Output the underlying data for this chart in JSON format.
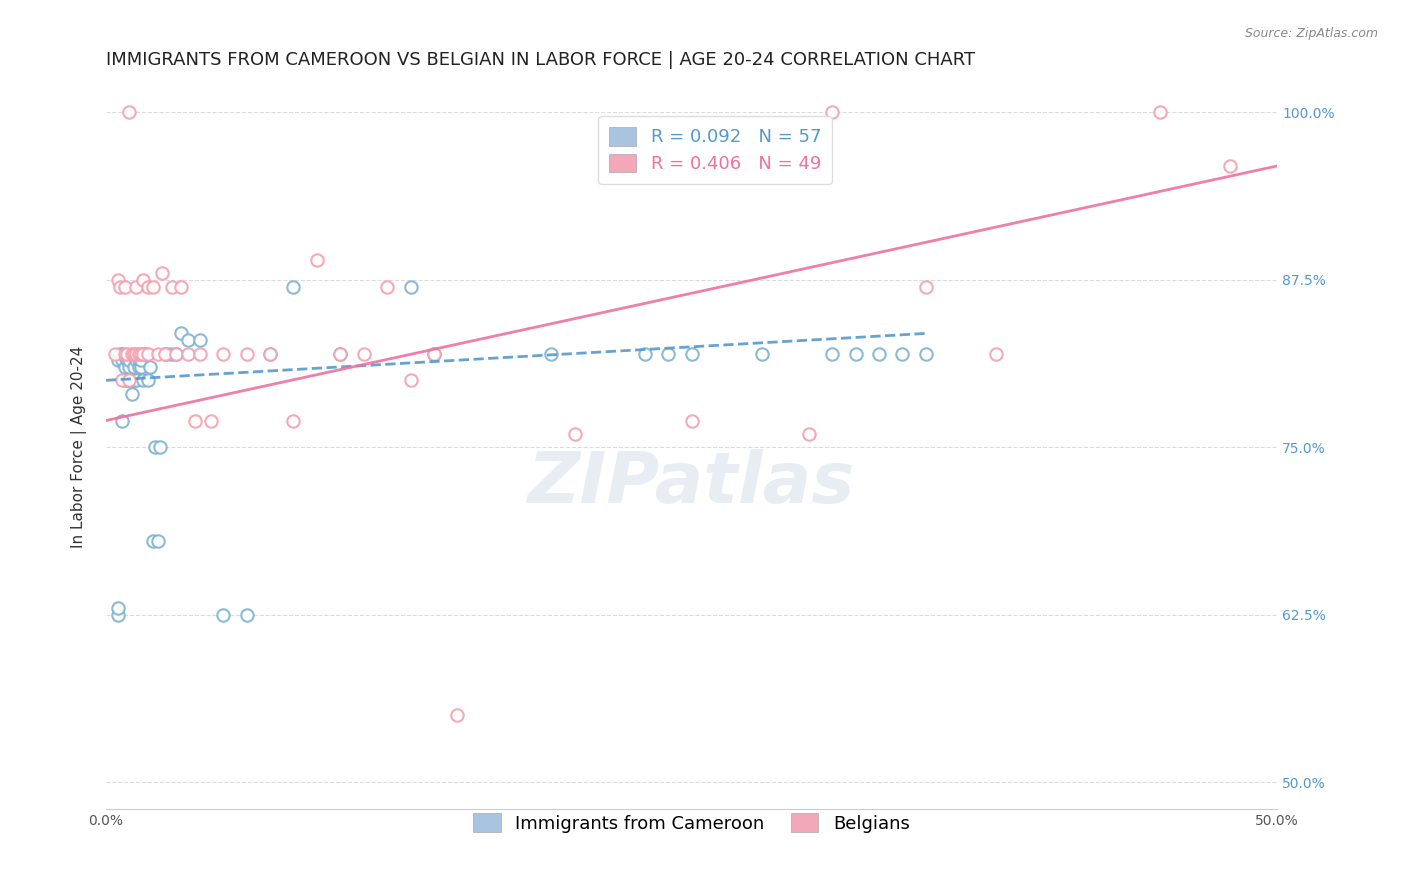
{
  "title": "IMMIGRANTS FROM CAMEROON VS BELGIAN IN LABOR FORCE | AGE 20-24 CORRELATION CHART",
  "source": "Source: ZipAtlas.com",
  "ylabel": "In Labor Force | Age 20-24",
  "xlim": [
    0.0,
    0.5
  ],
  "ylim": [
    0.48,
    1.02
  ],
  "ytick_labels_right": [
    "50.0%",
    "62.5%",
    "75.0%",
    "87.5%",
    "100.0%"
  ],
  "yticks_right": [
    0.5,
    0.625,
    0.75,
    0.875,
    1.0
  ],
  "legend1_label": "R = 0.092   N = 57",
  "legend2_label": "R = 0.406   N = 49",
  "legend_color1": "#a8c4e0",
  "legend_color2": "#f4a7b9",
  "scatter_blue_x": [
    0.005,
    0.005,
    0.005,
    0.006,
    0.007,
    0.007,
    0.007,
    0.008,
    0.008,
    0.009,
    0.009,
    0.01,
    0.01,
    0.01,
    0.011,
    0.011,
    0.012,
    0.012,
    0.013,
    0.013,
    0.014,
    0.014,
    0.015,
    0.015,
    0.016,
    0.016,
    0.017,
    0.018,
    0.019,
    0.02,
    0.021,
    0.022,
    0.023,
    0.025,
    0.026,
    0.028,
    0.03,
    0.032,
    0.035,
    0.04,
    0.05,
    0.06,
    0.07,
    0.08,
    0.1,
    0.13,
    0.14,
    0.19,
    0.23,
    0.24,
    0.25,
    0.28,
    0.31,
    0.32,
    0.33,
    0.34,
    0.35
  ],
  "scatter_blue_y": [
    0.625,
    0.63,
    0.815,
    0.82,
    0.77,
    0.815,
    0.82,
    0.8,
    0.81,
    0.8,
    0.815,
    0.8,
    0.81,
    0.815,
    0.79,
    0.8,
    0.8,
    0.81,
    0.8,
    0.815,
    0.81,
    0.815,
    0.81,
    0.815,
    0.8,
    0.82,
    0.82,
    0.8,
    0.81,
    0.68,
    0.75,
    0.68,
    0.75,
    0.82,
    0.82,
    0.82,
    0.82,
    0.835,
    0.83,
    0.83,
    0.625,
    0.625,
    0.82,
    0.87,
    0.82,
    0.87,
    0.82,
    0.82,
    0.82,
    0.82,
    0.82,
    0.82,
    0.82,
    0.82,
    0.82,
    0.82,
    0.82
  ],
  "scatter_pink_x": [
    0.004,
    0.005,
    0.006,
    0.007,
    0.008,
    0.008,
    0.009,
    0.01,
    0.01,
    0.011,
    0.012,
    0.013,
    0.013,
    0.014,
    0.015,
    0.016,
    0.016,
    0.018,
    0.018,
    0.02,
    0.022,
    0.024,
    0.025,
    0.028,
    0.03,
    0.032,
    0.035,
    0.038,
    0.04,
    0.045,
    0.05,
    0.06,
    0.07,
    0.08,
    0.09,
    0.1,
    0.11,
    0.12,
    0.13,
    0.14,
    0.15,
    0.2,
    0.25,
    0.3,
    0.31,
    0.35,
    0.38,
    0.45,
    0.48
  ],
  "scatter_pink_y": [
    0.82,
    0.875,
    0.87,
    0.8,
    0.87,
    0.82,
    0.82,
    1.0,
    0.8,
    0.82,
    0.82,
    0.87,
    0.82,
    0.82,
    0.82,
    0.82,
    0.875,
    0.87,
    0.82,
    0.87,
    0.82,
    0.88,
    0.82,
    0.87,
    0.82,
    0.87,
    0.82,
    0.77,
    0.82,
    0.77,
    0.82,
    0.82,
    0.82,
    0.77,
    0.89,
    0.82,
    0.82,
    0.87,
    0.8,
    0.82,
    0.55,
    0.76,
    0.77,
    0.76,
    1.0,
    0.87,
    0.82,
    1.0,
    0.96
  ],
  "blue_line_x": [
    0.0,
    0.35
  ],
  "blue_line_y": [
    0.8,
    0.835
  ],
  "pink_line_x": [
    0.0,
    0.5
  ],
  "pink_line_y": [
    0.77,
    0.96
  ],
  "watermark": "ZIPatlas",
  "blue_color": "#7fb3d3",
  "pink_color": "#f4a0b0",
  "blue_line_color": "#5599cc",
  "pink_line_color": "#f070a0",
  "title_fontsize": 13,
  "axis_label_fontsize": 11,
  "tick_fontsize": 10,
  "legend_fontsize": 13
}
